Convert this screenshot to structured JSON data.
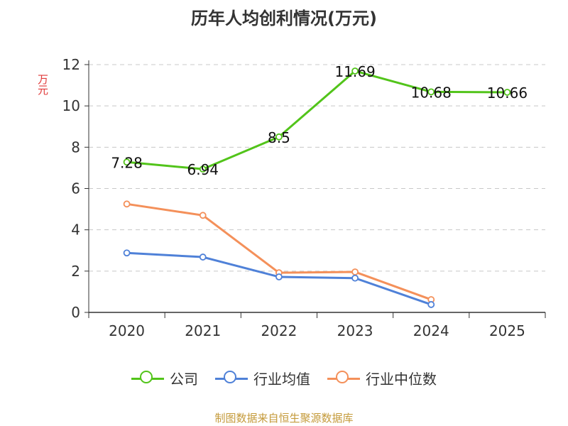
{
  "chart_data": {
    "type": "line",
    "title": "历年人均创利情况(万元)",
    "ylabel": "万元",
    "xlabel": "",
    "ylim": [
      0,
      12
    ],
    "yticks": [
      0,
      2,
      4,
      6,
      8,
      10,
      12
    ],
    "categories": [
      "2020",
      "2021",
      "2022",
      "2023",
      "2024",
      "2025"
    ],
    "series": [
      {
        "name": "公司",
        "color": "#52c41a",
        "values": [
          7.28,
          6.94,
          8.5,
          11.69,
          10.68,
          10.66
        ],
        "labels": [
          "7.28",
          "6.94",
          "8.5",
          "11.69",
          "10.68",
          "10.66"
        ]
      },
      {
        "name": "行业均值",
        "color": "#4f81d8",
        "values": [
          2.88,
          2.68,
          1.72,
          1.66,
          0.38,
          null
        ]
      },
      {
        "name": "行业中位数",
        "color": "#f4905a",
        "values": [
          5.25,
          4.7,
          1.92,
          1.96,
          0.62,
          null
        ]
      }
    ],
    "grid": true,
    "legend": "bottom"
  },
  "source": "制图数据来自恒生聚源数据库"
}
